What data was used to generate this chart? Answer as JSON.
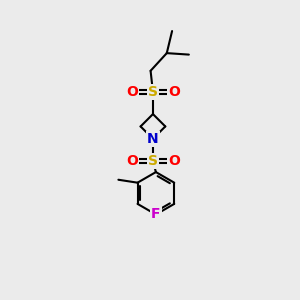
{
  "background_color": "#ebebeb",
  "line_color": "#000000",
  "line_width": 1.5,
  "atom_colors": {
    "S": "#ccaa00",
    "O": "#ff0000",
    "N": "#0000cc",
    "F": "#cc00cc",
    "C": "#000000"
  },
  "font_size_atom": 10,
  "xlim": [
    0,
    10
  ],
  "ylim": [
    0,
    10
  ]
}
